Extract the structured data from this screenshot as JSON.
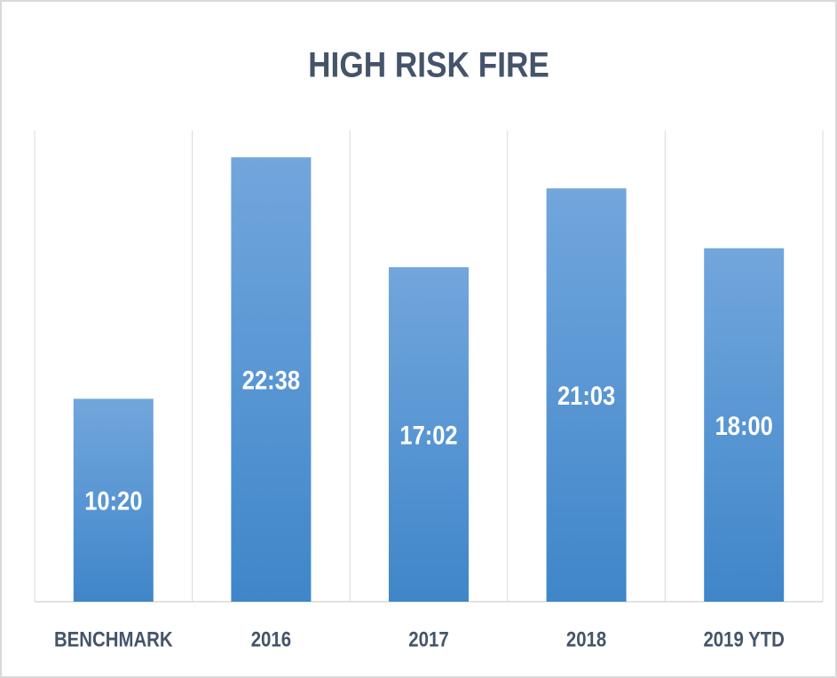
{
  "chart_data": {
    "type": "bar",
    "title": "HIGH RISK FIRE",
    "categories": [
      "BENCHMARK",
      "2016",
      "2017",
      "2018",
      "2019 YTD"
    ],
    "values": [
      620,
      1358,
      1022,
      1263,
      1080
    ],
    "value_labels": [
      "10:20",
      "22:38",
      "17:02",
      "21:03",
      "18:00"
    ],
    "color": "#5b9bd5",
    "ylim": [
      0,
      1440
    ]
  }
}
